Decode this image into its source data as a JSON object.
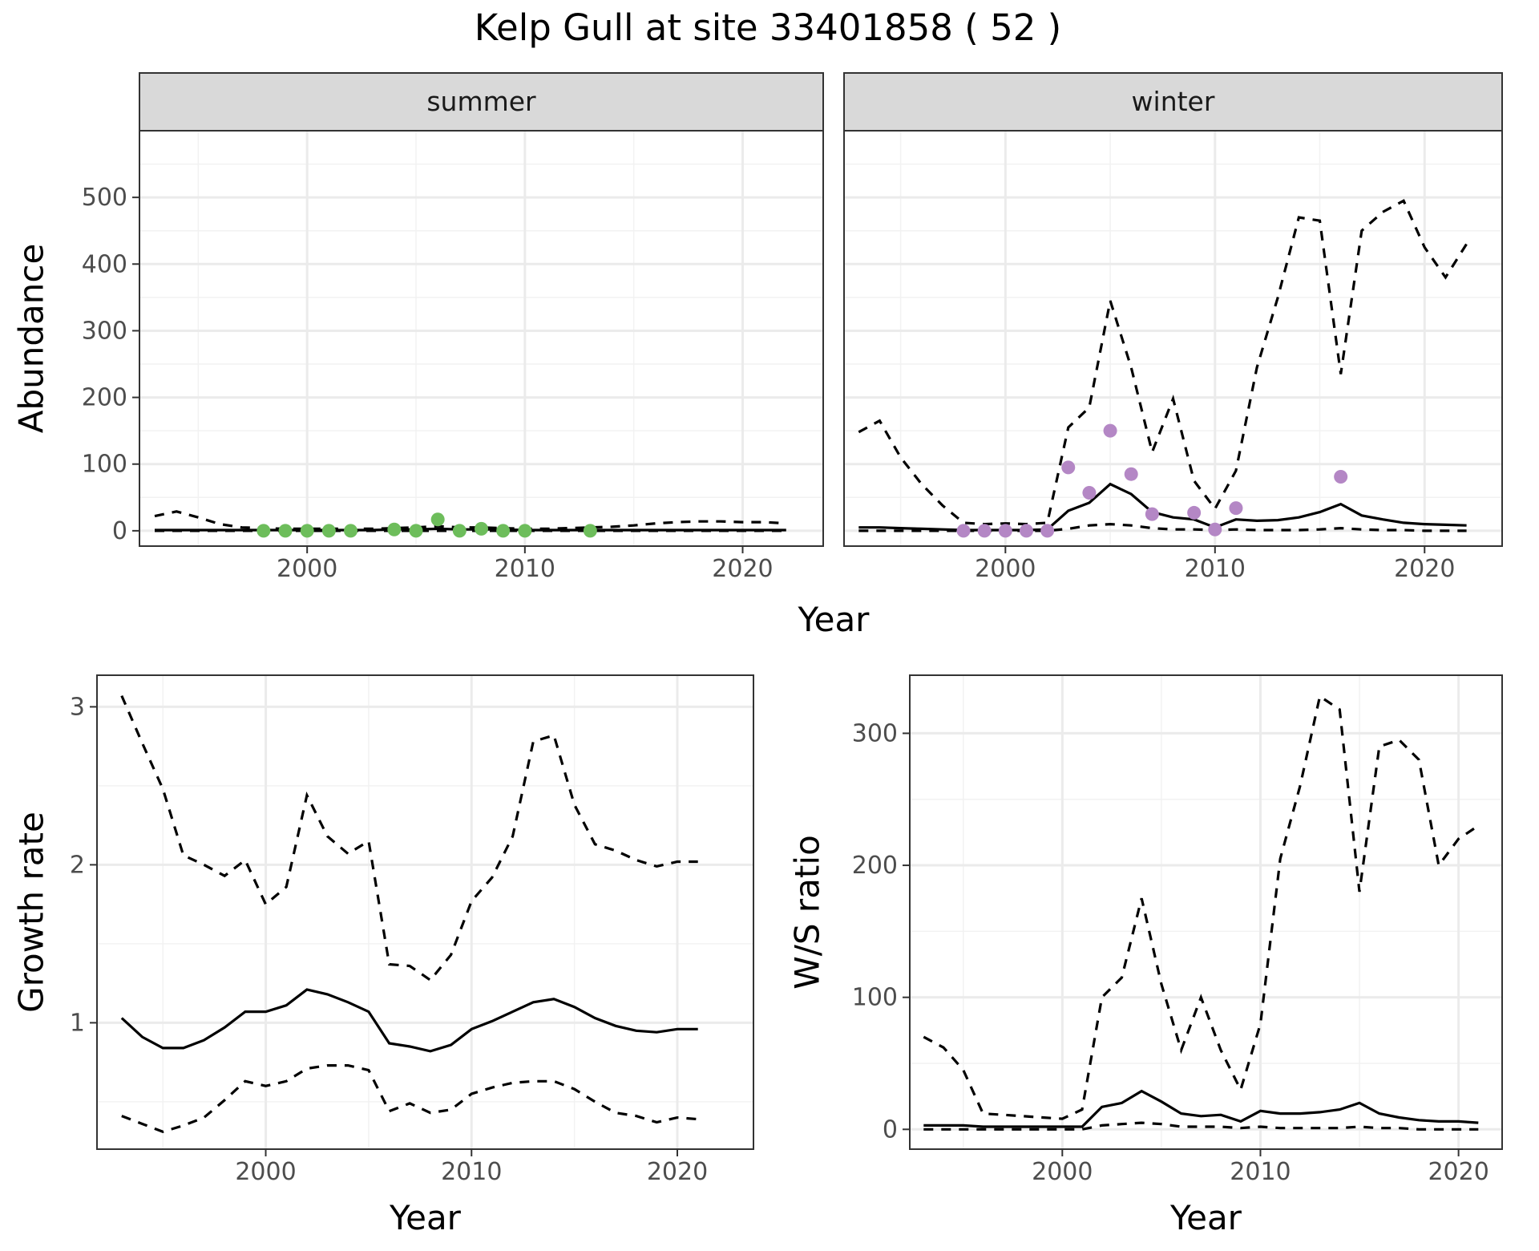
{
  "title": "Kelp Gull at site 33401858 ( 52 )",
  "top_xlabel": "Year",
  "colors": {
    "summer_points": "#6dbd5b",
    "winter_points": "#b487c5"
  },
  "chart_data": [
    {
      "id": "summer",
      "type": "line",
      "strip": "summer",
      "ylabel": "Abundance",
      "xlim": [
        1992.3,
        2023.7
      ],
      "ylim": [
        -23,
        600
      ],
      "xticks": [
        2000,
        2010,
        2020
      ],
      "yticks": [
        0,
        100,
        200,
        300,
        400,
        500
      ],
      "x": [
        1993,
        1994,
        1995,
        1996,
        1997,
        1998,
        1999,
        2000,
        2001,
        2002,
        2003,
        2004,
        2005,
        2006,
        2007,
        2008,
        2009,
        2010,
        2011,
        2012,
        2013,
        2014,
        2015,
        2016,
        2017,
        2018,
        2019,
        2020,
        2021,
        2022
      ],
      "series": [
        {
          "role": "estimate",
          "values": [
            1,
            1,
            1,
            1,
            1,
            1,
            1,
            1,
            1,
            1,
            1,
            2,
            2,
            3,
            2,
            2,
            2,
            1,
            1,
            1,
            1,
            1,
            1,
            1,
            1,
            1,
            1,
            1,
            1,
            1
          ]
        },
        {
          "role": "upper",
          "values": [
            22,
            29,
            20,
            10,
            5,
            4,
            3,
            3,
            3,
            3,
            3,
            4,
            5,
            7,
            5,
            5,
            4,
            3,
            3,
            4,
            5,
            6,
            8,
            11,
            13,
            14,
            14,
            13,
            13,
            11
          ]
        },
        {
          "role": "lower",
          "values": [
            0,
            0,
            0,
            0,
            0,
            0,
            0,
            0,
            0,
            0,
            0,
            0,
            0,
            0,
            0,
            0,
            0,
            0,
            0,
            0,
            0,
            0,
            0,
            0,
            0,
            0,
            0,
            0,
            0,
            0
          ]
        }
      ],
      "points": {
        "x": [
          1998,
          1999,
          2000,
          2001,
          2002,
          2004,
          2005,
          2006,
          2007,
          2008,
          2009,
          2010,
          2013
        ],
        "y": [
          0,
          0,
          0,
          0,
          0,
          2,
          0,
          17,
          0,
          3,
          0,
          0,
          0
        ]
      }
    },
    {
      "id": "winter",
      "type": "line",
      "strip": "winter",
      "xlim": [
        1992.3,
        2023.7
      ],
      "ylim": [
        -23,
        600
      ],
      "xticks": [
        2000,
        2010,
        2020
      ],
      "yticks": [
        0,
        100,
        200,
        300,
        400,
        500
      ],
      "x": [
        1993,
        1994,
        1995,
        1996,
        1997,
        1998,
        1999,
        2000,
        2001,
        2002,
        2003,
        2004,
        2005,
        2006,
        2007,
        2008,
        2009,
        2010,
        2011,
        2012,
        2013,
        2014,
        2015,
        2016,
        2017,
        2018,
        2019,
        2020,
        2021,
        2022
      ],
      "series": [
        {
          "role": "estimate",
          "values": [
            5,
            5,
            4,
            3,
            2,
            1,
            1,
            1,
            1,
            2,
            30,
            42,
            70,
            55,
            28,
            20,
            17,
            5,
            17,
            15,
            16,
            20,
            28,
            40,
            23,
            17,
            12,
            10,
            9,
            8
          ]
        },
        {
          "role": "upper",
          "values": [
            148,
            165,
            110,
            70,
            38,
            12,
            10,
            11,
            10,
            12,
            155,
            185,
            345,
            245,
            118,
            198,
            75,
            33,
            90,
            245,
            350,
            470,
            465,
            235,
            450,
            478,
            495,
            425,
            380,
            430
          ]
        },
        {
          "role": "lower",
          "values": [
            0,
            0,
            0,
            0,
            0,
            0,
            0,
            0,
            0,
            0,
            3,
            8,
            10,
            8,
            4,
            2,
            2,
            1,
            2,
            1,
            1,
            1,
            2,
            4,
            2,
            1,
            1,
            0,
            0,
            0
          ]
        }
      ],
      "points": {
        "x": [
          1998,
          1999,
          2000,
          2001,
          2002,
          2003,
          2004,
          2005,
          2006,
          2007,
          2009,
          2010,
          2011,
          2016
        ],
        "y": [
          0,
          0,
          0,
          0,
          0,
          95,
          57,
          150,
          85,
          25,
          27,
          2,
          34,
          81
        ]
      }
    },
    {
      "id": "growth",
      "type": "line",
      "xlabel": "Year",
      "ylabel": "Growth rate",
      "xlim": [
        1991.8,
        2023.7
      ],
      "ylim": [
        0.2,
        3.2
      ],
      "xticks": [
        2000,
        2010,
        2020
      ],
      "yticks": [
        1,
        2,
        3
      ],
      "x": [
        1993,
        1994,
        1995,
        1996,
        1997,
        1998,
        1999,
        2000,
        2001,
        2002,
        2003,
        2004,
        2005,
        2006,
        2007,
        2008,
        2009,
        2010,
        2011,
        2012,
        2013,
        2014,
        2015,
        2016,
        2017,
        2018,
        2019,
        2020,
        2021
      ],
      "series": [
        {
          "role": "estimate",
          "values": [
            1.03,
            0.91,
            0.84,
            0.84,
            0.89,
            0.97,
            1.07,
            1.07,
            1.11,
            1.21,
            1.18,
            1.13,
            1.07,
            0.87,
            0.85,
            0.82,
            0.86,
            0.96,
            1.01,
            1.07,
            1.13,
            1.15,
            1.1,
            1.03,
            0.98,
            0.95,
            0.94,
            0.96,
            0.96
          ]
        },
        {
          "role": "upper",
          "values": [
            3.07,
            2.77,
            2.48,
            2.06,
            2.0,
            1.93,
            2.03,
            1.75,
            1.86,
            2.44,
            2.18,
            2.07,
            2.15,
            1.37,
            1.36,
            1.27,
            1.43,
            1.77,
            1.92,
            2.18,
            2.78,
            2.82,
            2.38,
            2.13,
            2.09,
            2.03,
            1.99,
            2.02,
            2.02
          ]
        },
        {
          "role": "lower",
          "values": [
            0.41,
            0.36,
            0.31,
            0.35,
            0.4,
            0.51,
            0.63,
            0.6,
            0.63,
            0.71,
            0.73,
            0.73,
            0.7,
            0.44,
            0.49,
            0.43,
            0.45,
            0.55,
            0.59,
            0.62,
            0.63,
            0.63,
            0.58,
            0.5,
            0.43,
            0.41,
            0.37,
            0.4,
            0.39
          ]
        }
      ]
    },
    {
      "id": "ratio",
      "type": "line",
      "xlabel": "Year",
      "ylabel": "W/S ratio",
      "xlim": [
        1992.3,
        2022.2
      ],
      "ylim": [
        -15,
        344
      ],
      "xticks": [
        2000,
        2010,
        2020
      ],
      "yticks": [
        0,
        100,
        200,
        300
      ],
      "x": [
        1993,
        1994,
        1995,
        1996,
        1997,
        1998,
        1999,
        2000,
        2001,
        2002,
        2003,
        2004,
        2005,
        2006,
        2007,
        2008,
        2009,
        2010,
        2011,
        2012,
        2013,
        2014,
        2015,
        2016,
        2017,
        2018,
        2019,
        2020,
        2021
      ],
      "series": [
        {
          "role": "estimate",
          "values": [
            3,
            3,
            3,
            2,
            2,
            2,
            2,
            2,
            2,
            17,
            20,
            29,
            21,
            12,
            10,
            11,
            6,
            14,
            12,
            12,
            13,
            15,
            20,
            12,
            9,
            7,
            6,
            6,
            5
          ]
        },
        {
          "role": "upper",
          "values": [
            70,
            62,
            45,
            12,
            11,
            10,
            9,
            8,
            15,
            100,
            115,
            175,
            110,
            60,
            100,
            60,
            30,
            80,
            205,
            260,
            328,
            318,
            180,
            290,
            295,
            280,
            200,
            220,
            230
          ]
        },
        {
          "role": "lower",
          "values": [
            0,
            0,
            0,
            0,
            0,
            0,
            0,
            0,
            0,
            3,
            4,
            5,
            4,
            2,
            2,
            2,
            1,
            2,
            1,
            1,
            1,
            1,
            2,
            1,
            1,
            0,
            0,
            0,
            0
          ]
        }
      ]
    }
  ]
}
